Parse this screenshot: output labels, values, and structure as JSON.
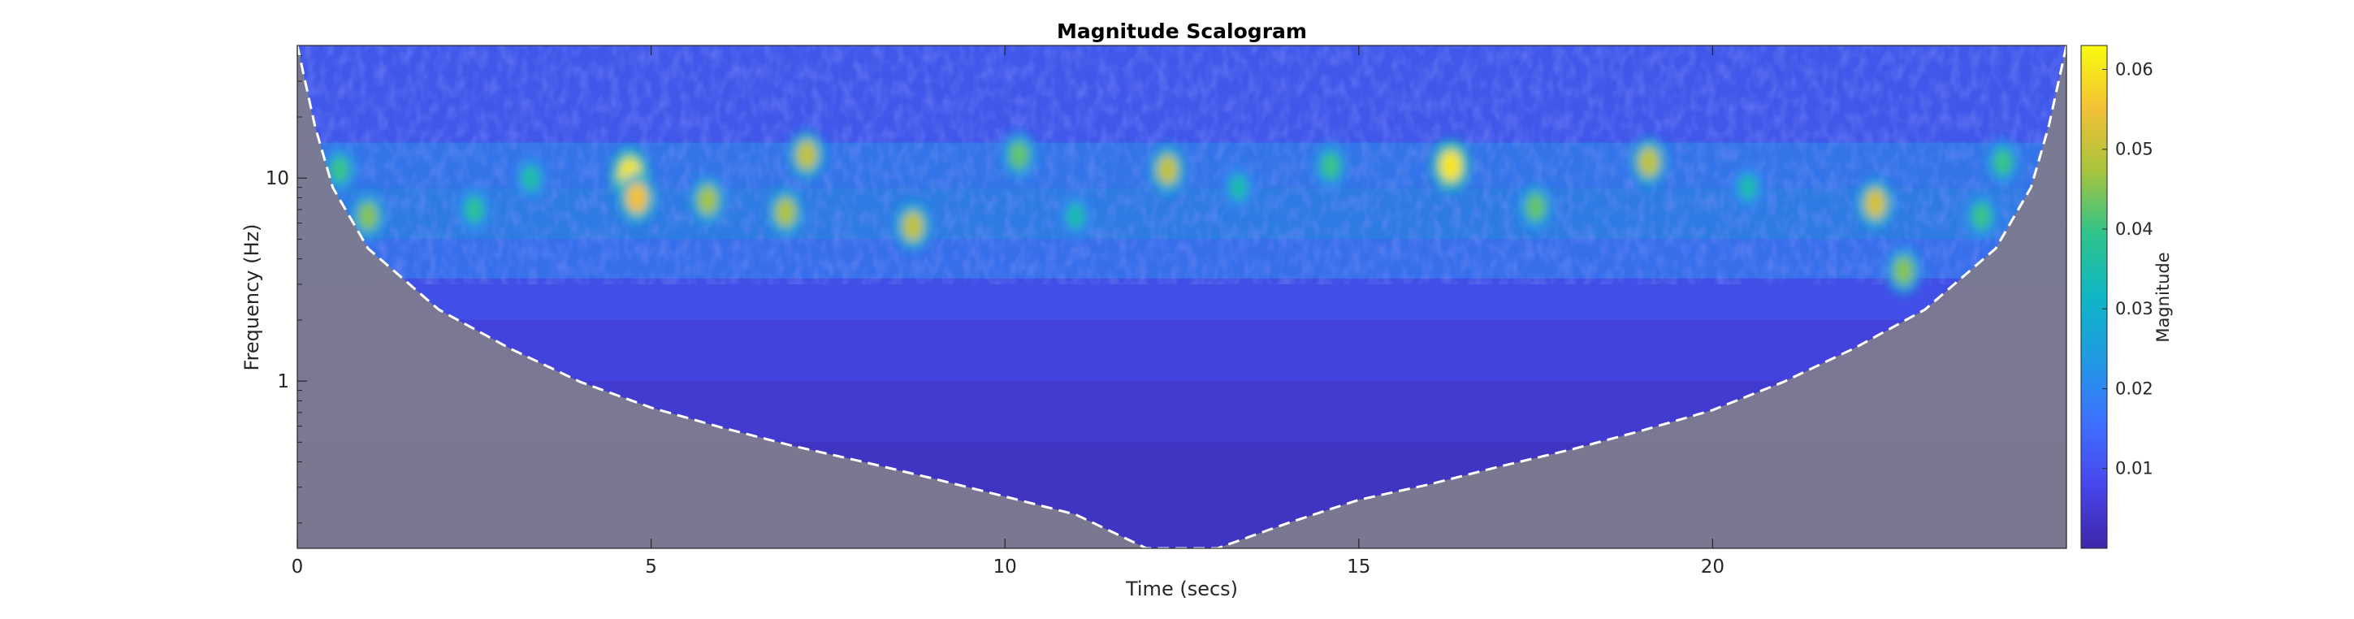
{
  "chart_data": {
    "type": "heatmap",
    "title": "Magnitude Scalogram",
    "xlabel": "Time (secs)",
    "ylabel": "Frequency (Hz)",
    "xlim": [
      0,
      25
    ],
    "ylim": [
      0.15,
      45
    ],
    "yscale": "log",
    "x_ticks": [
      0,
      5,
      10,
      15,
      20
    ],
    "x_tick_labels": [
      "0",
      "5",
      "10",
      "15",
      "20"
    ],
    "y_ticks": [
      1,
      10
    ],
    "y_tick_labels": [
      "1",
      "10"
    ],
    "colorbar": {
      "label": "Magnitude",
      "colormap": "parula",
      "range": [
        0.0,
        0.063
      ],
      "ticks": [
        0.01,
        0.02,
        0.03,
        0.04,
        0.05,
        0.06
      ],
      "tick_labels": [
        "0.01",
        "0.02",
        "0.03",
        "0.04",
        "0.05",
        "0.06"
      ]
    },
    "cone_of_influence": {
      "style": "white dashed line, gray shaded region outside",
      "time": [
        0,
        0.25,
        0.5,
        1,
        2,
        3,
        4,
        5,
        6,
        7,
        8,
        9,
        10,
        11,
        12,
        13,
        14,
        15,
        16,
        17,
        18,
        19,
        20,
        21,
        22,
        23,
        24,
        24.5,
        24.75,
        25
      ],
      "frequency": [
        45,
        18,
        9,
        4.5,
        2.25,
        1.45,
        0.99,
        0.74,
        0.59,
        0.48,
        0.4,
        0.33,
        0.27,
        0.22,
        0.15,
        0.15,
        0.2,
        0.26,
        0.31,
        0.38,
        0.46,
        0.57,
        0.72,
        0.99,
        1.45,
        2.25,
        4.5,
        9,
        18,
        45
      ]
    },
    "hotspots": [
      {
        "time": 4.7,
        "frequency": 10.5,
        "magnitude": 0.06
      },
      {
        "time": 4.8,
        "frequency": 8.0,
        "magnitude": 0.055
      },
      {
        "time": 8.7,
        "frequency": 5.8,
        "magnitude": 0.05
      },
      {
        "time": 16.3,
        "frequency": 11.5,
        "magnitude": 0.06
      },
      {
        "time": 22.3,
        "frequency": 7.5,
        "magnitude": 0.052
      },
      {
        "time": 5.8,
        "frequency": 7.8,
        "magnitude": 0.047
      },
      {
        "time": 6.9,
        "frequency": 6.8,
        "magnitude": 0.048
      },
      {
        "time": 7.2,
        "frequency": 13.0,
        "magnitude": 0.05
      },
      {
        "time": 12.3,
        "frequency": 11.0,
        "magnitude": 0.05
      },
      {
        "time": 19.1,
        "frequency": 12.0,
        "magnitude": 0.05
      },
      {
        "time": 1.0,
        "frequency": 6.5,
        "magnitude": 0.045
      },
      {
        "time": 22.7,
        "frequency": 3.5,
        "magnitude": 0.045
      },
      {
        "time": 17.5,
        "frequency": 7.2,
        "magnitude": 0.043
      },
      {
        "time": 10.2,
        "frequency": 13.0,
        "magnitude": 0.043
      },
      {
        "time": 14.6,
        "frequency": 11.5,
        "magnitude": 0.04
      },
      {
        "time": 24.1,
        "frequency": 12.0,
        "magnitude": 0.04
      },
      {
        "time": 2.5,
        "frequency": 7.0,
        "magnitude": 0.038
      },
      {
        "time": 3.3,
        "frequency": 10.0,
        "magnitude": 0.036
      },
      {
        "time": 11.0,
        "frequency": 6.5,
        "magnitude": 0.035
      },
      {
        "time": 13.3,
        "frequency": 9.0,
        "magnitude": 0.035
      },
      {
        "time": 20.5,
        "frequency": 9.0,
        "magnitude": 0.035
      },
      {
        "time": 0.6,
        "frequency": 11.0,
        "magnitude": 0.04
      },
      {
        "time": 23.8,
        "frequency": 6.5,
        "magnitude": 0.04
      }
    ]
  }
}
